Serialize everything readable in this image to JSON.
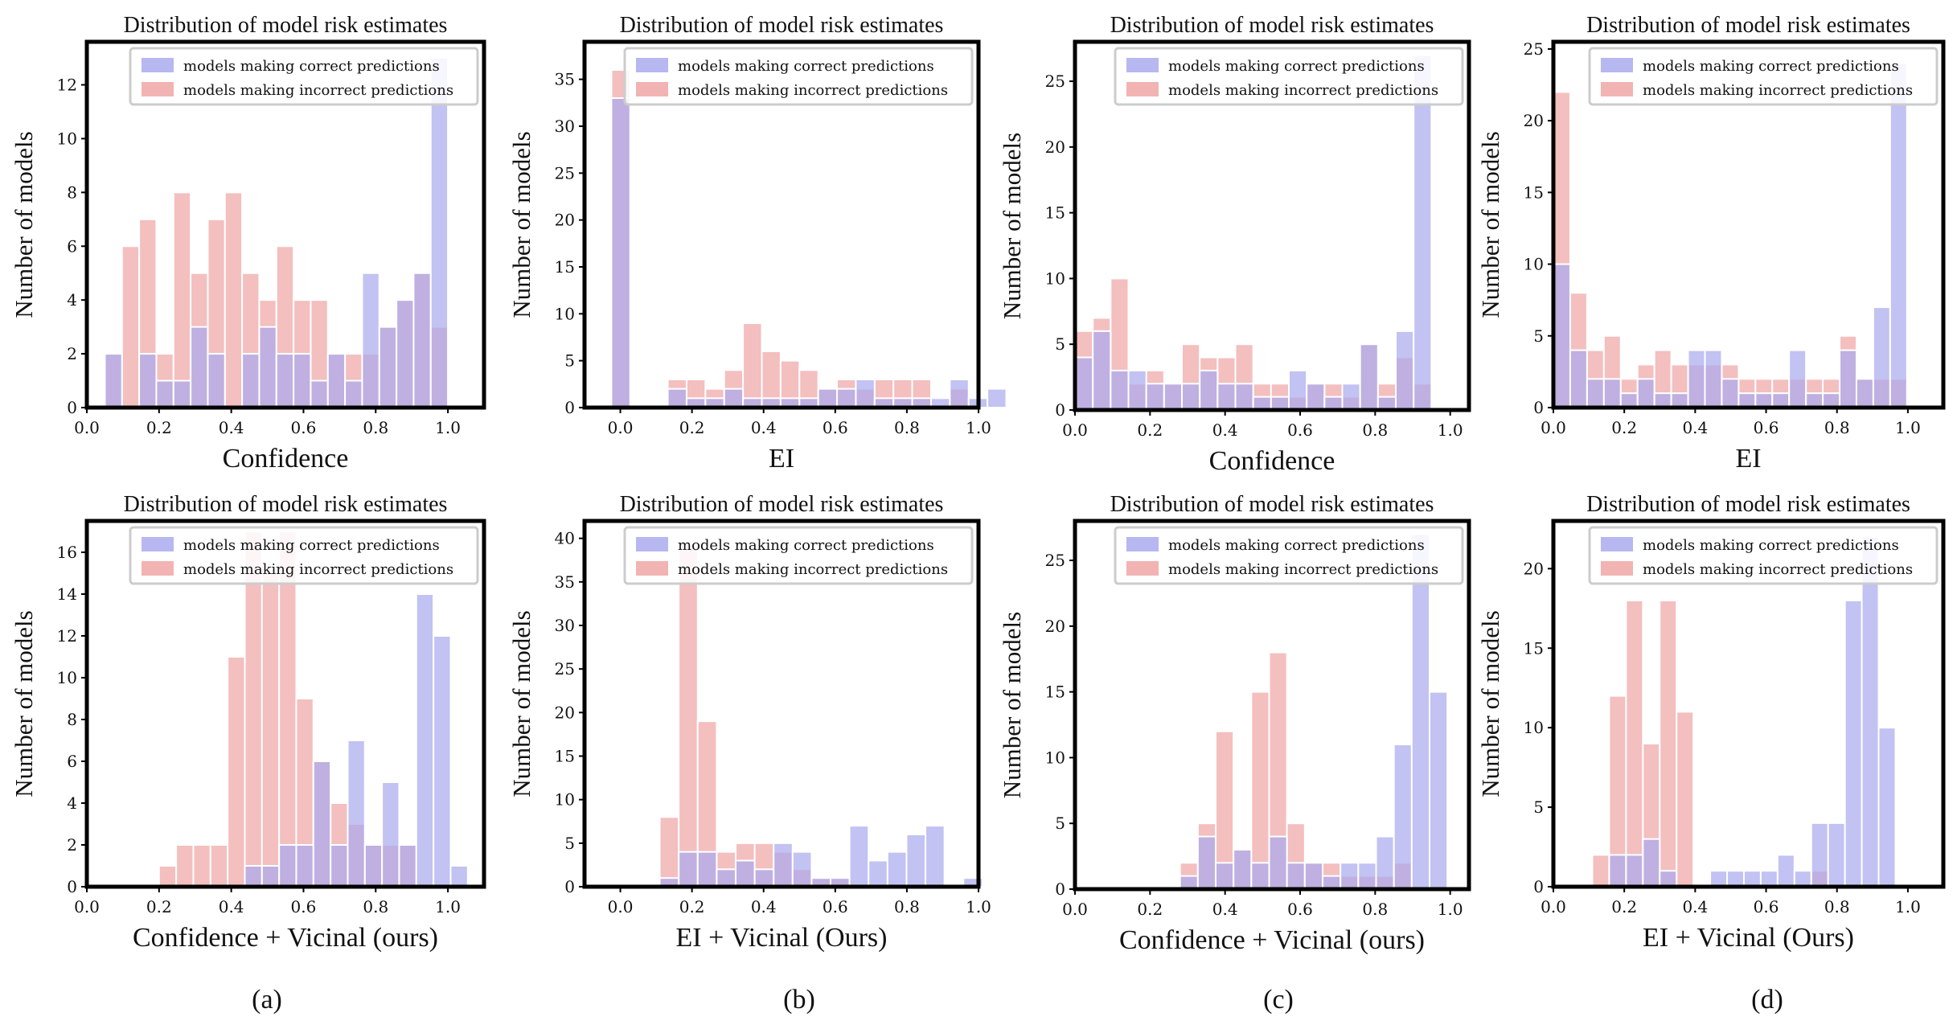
{
  "figure": {
    "captions": [
      "(a)",
      "(b)",
      "(c)",
      "(d)"
    ]
  },
  "colors": {
    "correct": "#aaaaee",
    "incorrect": "#f0a6a6",
    "axis": "#000000"
  },
  "chart_data": [
    {
      "type": "bar",
      "panel": "a-top",
      "title": "Distribution of model risk estimates",
      "xlabel": "Confidence",
      "ylabel": "Number of models",
      "xlim": [
        0.0,
        1.1
      ],
      "ylim": [
        0,
        13.6
      ],
      "xticks": [
        0.0,
        0.2,
        0.4,
        0.6,
        0.8,
        1.0
      ],
      "yticks": [
        0,
        2,
        4,
        6,
        8,
        10,
        12
      ],
      "legend": [
        "models making correct predictions",
        "models making incorrect predictions"
      ],
      "bin_start": 0.05,
      "bin_width": 0.0475,
      "series": [
        {
          "name": "models making correct predictions",
          "values": [
            2,
            0,
            2,
            1,
            1,
            3,
            2,
            0,
            2,
            3,
            2,
            2,
            1,
            2,
            1,
            5,
            3,
            4,
            5,
            13
          ]
        },
        {
          "name": "models making incorrect predictions",
          "values": [
            2,
            6,
            7,
            2,
            8,
            5,
            7,
            8,
            5,
            4,
            6,
            4,
            4,
            2,
            2,
            2,
            3,
            4,
            5,
            3
          ]
        }
      ]
    },
    {
      "type": "bar",
      "panel": "b-top",
      "title": "Distribution of model risk estimates",
      "xlabel": "EI",
      "ylabel": "Number of models",
      "xlim": [
        -0.1,
        1.0
      ],
      "ylim": [
        0,
        39
      ],
      "xticks": [
        0.0,
        0.2,
        0.4,
        0.6,
        0.8,
        1.0
      ],
      "yticks": [
        0,
        5,
        10,
        15,
        20,
        25,
        30,
        35
      ],
      "legend": [
        "models making correct predictions",
        "models making incorrect predictions"
      ],
      "bin_start": -0.025,
      "bin_width": 0.0525,
      "series": [
        {
          "name": "models making correct predictions",
          "values": [
            33,
            0,
            0,
            2,
            1,
            1,
            2,
            1,
            1,
            1,
            1,
            2,
            2,
            3,
            1,
            1,
            1,
            1,
            3,
            1,
            2
          ]
        },
        {
          "name": "models making incorrect predictions",
          "values": [
            36,
            0,
            0,
            3,
            3,
            2,
            4,
            9,
            6,
            5,
            4,
            2,
            3,
            2,
            3,
            3,
            3,
            0,
            2,
            0,
            0
          ]
        }
      ]
    },
    {
      "type": "bar",
      "panel": "c-top",
      "title": "Distribution of model risk estimates",
      "xlabel": "Confidence",
      "ylabel": "Number of models",
      "xlim": [
        0.0,
        1.05
      ],
      "ylim": [
        0,
        28
      ],
      "xticks": [
        0.0,
        0.2,
        0.4,
        0.6,
        0.8,
        1.0
      ],
      "yticks": [
        0,
        5,
        10,
        15,
        20,
        25
      ],
      "legend": [
        "models making correct predictions",
        "models making incorrect predictions"
      ],
      "bin_start": 0.0,
      "bin_width": 0.0475,
      "series": [
        {
          "name": "models making correct predictions",
          "values": [
            4,
            6,
            3,
            3,
            2,
            2,
            2,
            3,
            2,
            2,
            1,
            1,
            3,
            2,
            1,
            2,
            5,
            1,
            6,
            27
          ]
        },
        {
          "name": "models making incorrect predictions",
          "values": [
            6,
            7,
            10,
            2,
            3,
            2,
            5,
            4,
            4,
            5,
            2,
            2,
            1,
            2,
            2,
            1,
            5,
            2,
            4,
            2
          ]
        }
      ]
    },
    {
      "type": "bar",
      "panel": "d-top",
      "title": "Distribution of model risk estimates",
      "xlabel": "EI",
      "ylabel": "Number of models",
      "xlim": [
        0.0,
        1.1
      ],
      "ylim": [
        0,
        25.5
      ],
      "xticks": [
        0.0,
        0.2,
        0.4,
        0.6,
        0.8,
        1.0
      ],
      "yticks": [
        0,
        5,
        10,
        15,
        20,
        25
      ],
      "legend": [
        "models making correct predictions",
        "models making incorrect predictions"
      ],
      "bin_start": 0.0,
      "bin_width": 0.0475,
      "series": [
        {
          "name": "models making correct predictions",
          "values": [
            10,
            4,
            2,
            2,
            1,
            2,
            1,
            1,
            4,
            4,
            2,
            1,
            1,
            1,
            4,
            1,
            1,
            4,
            2,
            7,
            24
          ]
        },
        {
          "name": "models making incorrect predictions",
          "values": [
            22,
            8,
            4,
            5,
            2,
            3,
            4,
            3,
            3,
            3,
            3,
            2,
            2,
            2,
            2,
            2,
            2,
            5,
            2,
            2,
            2
          ]
        }
      ]
    },
    {
      "type": "bar",
      "panel": "a-bottom",
      "title": "Distribution of model risk estimates",
      "xlabel": "Confidence + Vicinal (ours)",
      "ylabel": "Number of models",
      "xlim": [
        0.0,
        1.1
      ],
      "ylim": [
        0,
        17.5
      ],
      "xticks": [
        0.0,
        0.2,
        0.4,
        0.6,
        0.8,
        1.0
      ],
      "yticks": [
        0,
        2,
        4,
        6,
        8,
        10,
        12,
        14,
        16
      ],
      "legend": [
        "models making correct predictions",
        "models making incorrect predictions"
      ],
      "bin_start": 0.2,
      "bin_width": 0.0475,
      "series": [
        {
          "name": "models making correct predictions",
          "values": [
            0,
            0,
            0,
            0,
            0,
            1,
            1,
            2,
            2,
            6,
            2,
            7,
            2,
            5,
            2,
            14,
            12,
            1
          ]
        },
        {
          "name": "models making incorrect predictions",
          "values": [
            1,
            2,
            2,
            2,
            11,
            17,
            15,
            17,
            9,
            6,
            4,
            3,
            2,
            2,
            2,
            0,
            0,
            0
          ]
        }
      ]
    },
    {
      "type": "bar",
      "panel": "b-bottom",
      "title": "Distribution of model risk estimates",
      "xlabel": "EI + Vicinal (Ours)",
      "ylabel": "Number of models",
      "xlim": [
        -0.1,
        1.0
      ],
      "ylim": [
        0,
        42
      ],
      "xticks": [
        0.0,
        0.2,
        0.4,
        0.6,
        0.8,
        1.0
      ],
      "yticks": [
        0,
        5,
        10,
        15,
        20,
        25,
        30,
        35,
        40
      ],
      "legend": [
        "models making correct predictions",
        "models making incorrect predictions"
      ],
      "bin_start": 0.11,
      "bin_width": 0.053,
      "series": [
        {
          "name": "models making correct predictions",
          "values": [
            1,
            4,
            4,
            2,
            3,
            2,
            5,
            4,
            1,
            1,
            7,
            3,
            4,
            6,
            7,
            0,
            1
          ]
        },
        {
          "name": "models making incorrect predictions",
          "values": [
            8,
            39,
            19,
            4,
            5,
            5,
            4,
            2,
            1,
            1,
            0,
            0,
            0,
            0,
            0,
            0,
            0
          ]
        }
      ]
    },
    {
      "type": "bar",
      "panel": "c-bottom",
      "title": "Distribution of model risk estimates",
      "xlabel": "Confidence + Vicinal (ours)",
      "ylabel": "Number of models",
      "xlim": [
        0.0,
        1.05
      ],
      "ylim": [
        0,
        28
      ],
      "xticks": [
        0.0,
        0.2,
        0.4,
        0.6,
        0.8,
        1.0
      ],
      "yticks": [
        0,
        5,
        10,
        15,
        20,
        25
      ],
      "legend": [
        "models making correct predictions",
        "models making incorrect predictions"
      ],
      "bin_start": 0.28,
      "bin_width": 0.0475,
      "series": [
        {
          "name": "models making correct predictions",
          "values": [
            1,
            4,
            2,
            3,
            2,
            4,
            2,
            2,
            1,
            2,
            2,
            4,
            11,
            27,
            15
          ]
        },
        {
          "name": "models making incorrect predictions",
          "values": [
            2,
            5,
            12,
            3,
            15,
            18,
            5,
            2,
            2,
            1,
            1,
            1,
            2,
            0,
            0
          ]
        }
      ]
    },
    {
      "type": "bar",
      "panel": "d-bottom",
      "title": "Distribution of model risk estimates",
      "xlabel": "EI + Vicinal (Ours)",
      "ylabel": "Number of models",
      "xlim": [
        0.0,
        1.1
      ],
      "ylim": [
        0,
        23
      ],
      "xticks": [
        0.0,
        0.2,
        0.4,
        0.6,
        0.8,
        1.0
      ],
      "yticks": [
        0,
        5,
        10,
        15,
        20
      ],
      "legend": [
        "models making correct predictions",
        "models making incorrect predictions"
      ],
      "bin_start": 0.11,
      "bin_width": 0.0475,
      "series": [
        {
          "name": "models making correct predictions",
          "values": [
            0,
            2,
            2,
            3,
            1,
            0,
            0,
            1,
            1,
            1,
            1,
            2,
            1,
            4,
            4,
            18,
            22,
            10
          ]
        },
        {
          "name": "models making incorrect predictions",
          "values": [
            2,
            12,
            18,
            9,
            18,
            11,
            0,
            0,
            0,
            0,
            0,
            0,
            0,
            1,
            0,
            0,
            0,
            0
          ]
        }
      ]
    }
  ]
}
